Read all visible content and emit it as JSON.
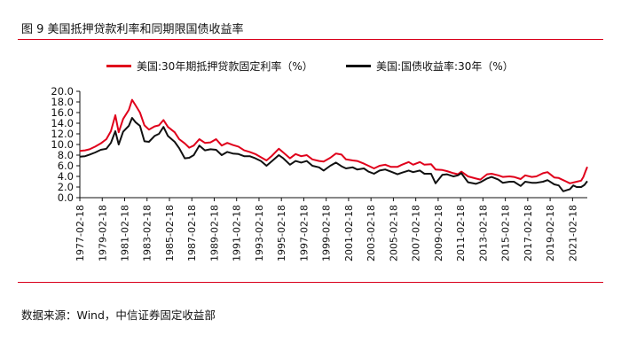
{
  "figure": {
    "title": "图 9  美国抵押贷款利率和同期限国债收益率",
    "source": "数据来源：Wind，中信证券固定收益部"
  },
  "colors": {
    "mortgage": "#e0001b",
    "treasury": "#111111",
    "rule": "#d9001b"
  },
  "chart_data": {
    "type": "line",
    "title": "",
    "xlabel": "",
    "ylabel": "",
    "ylim": [
      0,
      20
    ],
    "yticks": [
      "0.0",
      "2.0",
      "4.0",
      "6.0",
      "8.0",
      "10.0",
      "12.0",
      "14.0",
      "16.0",
      "18.0",
      "20.0"
    ],
    "xticks": [
      "1977-02-18",
      "1979-02-18",
      "1981-02-18",
      "1983-02-18",
      "1985-02-18",
      "1987-02-18",
      "1989-02-18",
      "1991-02-18",
      "1993-02-18",
      "1995-02-18",
      "1997-02-18",
      "1999-02-18",
      "2001-02-18",
      "2003-02-18",
      "2005-02-18",
      "2007-02-18",
      "2009-02-18",
      "2011-02-18",
      "2013-02-18",
      "2015-02-18",
      "2017-02-18",
      "2019-02-18",
      "2021-02-18"
    ],
    "xrange": [
      1977.13,
      2022.45
    ],
    "grid": false,
    "legend_position": "top",
    "series": [
      {
        "name": "美国:30年期抵押贷款固定利率（%）",
        "color": "#e0001b",
        "points": [
          [
            1977.13,
            8.8
          ],
          [
            1977.6,
            8.9
          ],
          [
            1978.0,
            9.1
          ],
          [
            1978.5,
            9.6
          ],
          [
            1979.0,
            10.2
          ],
          [
            1979.5,
            11.0
          ],
          [
            1979.9,
            12.5
          ],
          [
            1980.3,
            15.5
          ],
          [
            1980.6,
            12.3
          ],
          [
            1981.0,
            14.8
          ],
          [
            1981.5,
            16.5
          ],
          [
            1981.8,
            18.4
          ],
          [
            1982.1,
            17.4
          ],
          [
            1982.5,
            16.0
          ],
          [
            1982.9,
            13.6
          ],
          [
            1983.3,
            12.8
          ],
          [
            1983.8,
            13.4
          ],
          [
            1984.2,
            13.6
          ],
          [
            1984.6,
            14.6
          ],
          [
            1985.0,
            13.3
          ],
          [
            1985.6,
            12.3
          ],
          [
            1986.0,
            11.0
          ],
          [
            1986.5,
            10.2
          ],
          [
            1986.9,
            9.4
          ],
          [
            1987.3,
            9.8
          ],
          [
            1987.8,
            11.0
          ],
          [
            1988.3,
            10.3
          ],
          [
            1988.8,
            10.4
          ],
          [
            1989.3,
            11.0
          ],
          [
            1989.8,
            9.8
          ],
          [
            1990.3,
            10.3
          ],
          [
            1990.8,
            9.9
          ],
          [
            1991.3,
            9.6
          ],
          [
            1991.8,
            8.9
          ],
          [
            1992.3,
            8.6
          ],
          [
            1992.8,
            8.2
          ],
          [
            1993.3,
            7.6
          ],
          [
            1993.8,
            7.0
          ],
          [
            1994.3,
            7.9
          ],
          [
            1994.9,
            9.2
          ],
          [
            1995.3,
            8.5
          ],
          [
            1995.9,
            7.4
          ],
          [
            1996.4,
            8.2
          ],
          [
            1996.9,
            7.8
          ],
          [
            1997.4,
            8.0
          ],
          [
            1997.9,
            7.2
          ],
          [
            1998.5,
            6.9
          ],
          [
            1998.9,
            6.8
          ],
          [
            1999.5,
            7.5
          ],
          [
            2000.0,
            8.3
          ],
          [
            2000.5,
            8.1
          ],
          [
            2000.9,
            7.2
          ],
          [
            2001.5,
            7.0
          ],
          [
            2001.9,
            6.9
          ],
          [
            2002.5,
            6.4
          ],
          [
            2002.9,
            6.0
          ],
          [
            2003.4,
            5.5
          ],
          [
            2003.9,
            6.0
          ],
          [
            2004.4,
            6.2
          ],
          [
            2004.9,
            5.8
          ],
          [
            2005.5,
            5.8
          ],
          [
            2005.9,
            6.2
          ],
          [
            2006.5,
            6.7
          ],
          [
            2006.9,
            6.2
          ],
          [
            2007.5,
            6.7
          ],
          [
            2007.9,
            6.2
          ],
          [
            2008.5,
            6.3
          ],
          [
            2008.9,
            5.3
          ],
          [
            2009.5,
            5.2
          ],
          [
            2009.9,
            5.0
          ],
          [
            2010.5,
            4.6
          ],
          [
            2010.9,
            4.4
          ],
          [
            2011.2,
            4.9
          ],
          [
            2011.8,
            4.0
          ],
          [
            2012.5,
            3.6
          ],
          [
            2012.9,
            3.4
          ],
          [
            2013.5,
            4.4
          ],
          [
            2013.9,
            4.5
          ],
          [
            2014.5,
            4.2
          ],
          [
            2014.9,
            3.9
          ],
          [
            2015.5,
            4.0
          ],
          [
            2015.9,
            3.9
          ],
          [
            2016.5,
            3.5
          ],
          [
            2016.9,
            4.2
          ],
          [
            2017.5,
            3.9
          ],
          [
            2017.9,
            4.0
          ],
          [
            2018.5,
            4.6
          ],
          [
            2018.9,
            4.8
          ],
          [
            2019.5,
            3.8
          ],
          [
            2019.9,
            3.7
          ],
          [
            2020.5,
            3.1
          ],
          [
            2020.9,
            2.7
          ],
          [
            2021.5,
            3.0
          ],
          [
            2021.9,
            3.2
          ],
          [
            2022.1,
            3.9
          ],
          [
            2022.3,
            5.0
          ],
          [
            2022.45,
            5.8
          ]
        ]
      },
      {
        "name": "美国:国债收益率:30年（%）",
        "color": "#111111",
        "points": [
          [
            1977.13,
            7.7
          ],
          [
            1977.6,
            7.8
          ],
          [
            1978.0,
            8.1
          ],
          [
            1978.5,
            8.5
          ],
          [
            1979.0,
            9.0
          ],
          [
            1979.5,
            9.2
          ],
          [
            1979.9,
            10.3
          ],
          [
            1980.3,
            12.5
          ],
          [
            1980.6,
            10.0
          ],
          [
            1981.0,
            12.4
          ],
          [
            1981.5,
            13.5
          ],
          [
            1981.8,
            15.0
          ],
          [
            1982.1,
            14.2
          ],
          [
            1982.5,
            13.5
          ],
          [
            1982.9,
            10.6
          ],
          [
            1983.3,
            10.5
          ],
          [
            1983.8,
            11.6
          ],
          [
            1984.2,
            12.0
          ],
          [
            1984.6,
            13.3
          ],
          [
            1985.0,
            11.6
          ],
          [
            1985.6,
            10.5
          ],
          [
            1986.0,
            9.3
          ],
          [
            1986.5,
            7.4
          ],
          [
            1986.9,
            7.5
          ],
          [
            1987.3,
            8.0
          ],
          [
            1987.8,
            9.8
          ],
          [
            1988.3,
            8.9
          ],
          [
            1988.8,
            9.1
          ],
          [
            1989.3,
            9.0
          ],
          [
            1989.8,
            8.0
          ],
          [
            1990.3,
            8.6
          ],
          [
            1990.8,
            8.3
          ],
          [
            1991.3,
            8.2
          ],
          [
            1991.8,
            7.8
          ],
          [
            1992.3,
            7.8
          ],
          [
            1992.8,
            7.4
          ],
          [
            1993.3,
            6.9
          ],
          [
            1993.8,
            6.0
          ],
          [
            1994.3,
            6.9
          ],
          [
            1994.9,
            8.0
          ],
          [
            1995.3,
            7.4
          ],
          [
            1995.9,
            6.2
          ],
          [
            1996.4,
            6.9
          ],
          [
            1996.9,
            6.6
          ],
          [
            1997.4,
            6.9
          ],
          [
            1997.9,
            6.0
          ],
          [
            1998.5,
            5.7
          ],
          [
            1998.9,
            5.1
          ],
          [
            1999.5,
            6.0
          ],
          [
            2000.0,
            6.6
          ],
          [
            2000.5,
            5.9
          ],
          [
            2000.9,
            5.5
          ],
          [
            2001.5,
            5.7
          ],
          [
            2001.9,
            5.3
          ],
          [
            2002.5,
            5.5
          ],
          [
            2002.9,
            4.9
          ],
          [
            2003.4,
            4.5
          ],
          [
            2003.9,
            5.1
          ],
          [
            2004.4,
            5.3
          ],
          [
            2004.9,
            4.9
          ],
          [
            2005.5,
            4.4
          ],
          [
            2005.9,
            4.7
          ],
          [
            2006.5,
            5.1
          ],
          [
            2006.9,
            4.8
          ],
          [
            2007.5,
            5.1
          ],
          [
            2007.9,
            4.5
          ],
          [
            2008.5,
            4.5
          ],
          [
            2008.9,
            2.7
          ],
          [
            2009.5,
            4.3
          ],
          [
            2009.9,
            4.4
          ],
          [
            2010.5,
            4.0
          ],
          [
            2010.9,
            4.2
          ],
          [
            2011.2,
            4.6
          ],
          [
            2011.8,
            2.9
          ],
          [
            2012.5,
            2.6
          ],
          [
            2012.9,
            2.9
          ],
          [
            2013.5,
            3.6
          ],
          [
            2013.9,
            3.9
          ],
          [
            2014.5,
            3.4
          ],
          [
            2014.9,
            2.8
          ],
          [
            2015.5,
            3.0
          ],
          [
            2015.9,
            3.0
          ],
          [
            2016.5,
            2.2
          ],
          [
            2016.9,
            3.0
          ],
          [
            2017.5,
            2.8
          ],
          [
            2017.9,
            2.8
          ],
          [
            2018.5,
            3.0
          ],
          [
            2018.9,
            3.3
          ],
          [
            2019.5,
            2.5
          ],
          [
            2019.9,
            2.3
          ],
          [
            2020.3,
            1.2
          ],
          [
            2020.6,
            1.4
          ],
          [
            2020.9,
            1.6
          ],
          [
            2021.2,
            2.3
          ],
          [
            2021.5,
            2.0
          ],
          [
            2021.9,
            2.0
          ],
          [
            2022.2,
            2.4
          ],
          [
            2022.45,
            3.1
          ]
        ]
      }
    ]
  }
}
